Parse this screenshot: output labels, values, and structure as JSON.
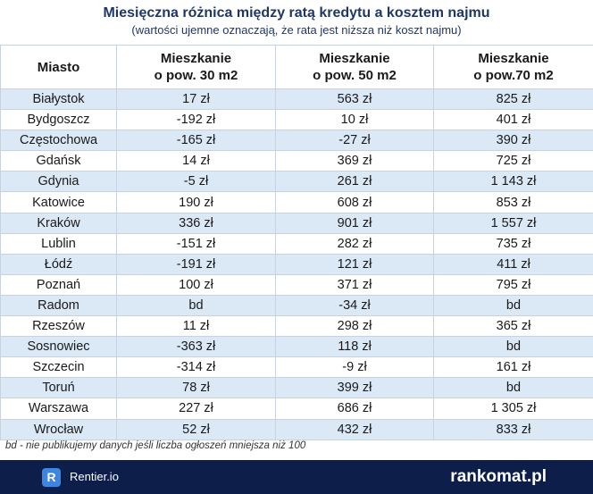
{
  "header": {
    "title": "Miesięczna różnica między ratą kredytu a kosztem najmu",
    "subtitle": "(wartości ujemne oznaczają, że rata jest niższa niż koszt najmu)"
  },
  "table": {
    "columns": [
      [
        "Miasto"
      ],
      [
        "Mieszkanie",
        "o pow. 30 m2"
      ],
      [
        "Mieszkanie",
        "o pow. 50 m2"
      ],
      [
        "Mieszkanie",
        "o pow.70 m2"
      ]
    ],
    "rows": [
      [
        "Białystok",
        "17 zł",
        "563 zł",
        "825 zł"
      ],
      [
        "Bydgoszcz",
        "-192 zł",
        "10 zł",
        "401 zł"
      ],
      [
        "Częstochowa",
        "-165 zł",
        "-27 zł",
        "390 zł"
      ],
      [
        "Gdańsk",
        "14 zł",
        "369 zł",
        "725 zł"
      ],
      [
        "Gdynia",
        "-5 zł",
        "261 zł",
        "1 143 zł"
      ],
      [
        "Katowice",
        "190 zł",
        "608 zł",
        "853 zł"
      ],
      [
        "Kraków",
        "336 zł",
        "901 zł",
        "1 557 zł"
      ],
      [
        "Lublin",
        "-151 zł",
        "282 zł",
        "735 zł"
      ],
      [
        "Łódź",
        "-191 zł",
        "121 zł",
        "411 zł"
      ],
      [
        "Poznań",
        "100 zł",
        "371 zł",
        "795 zł"
      ],
      [
        "Radom",
        "bd",
        "-34 zł",
        "bd"
      ],
      [
        "Rzeszów",
        "11 zł",
        "298 zł",
        "365 zł"
      ],
      [
        "Sosnowiec",
        "-363 zł",
        "118 zł",
        "bd"
      ],
      [
        "Szczecin",
        "-314 zł",
        "-9 zł",
        "161 zł"
      ],
      [
        "Toruń",
        "78 zł",
        "399 zł",
        "bd"
      ],
      [
        "Warszawa",
        "227 zł",
        "686 zł",
        "1 305 zł"
      ],
      [
        "Wrocław",
        "52 zł",
        "432 zł",
        "833 zł"
      ]
    ]
  },
  "footnote": "bd - nie publikujemy danych jeśli liczba ogłoszeń mniejsza niż 100",
  "footer": {
    "logo_letter": "R",
    "left": "Rentier.io",
    "right": "rankomat.pl"
  }
}
